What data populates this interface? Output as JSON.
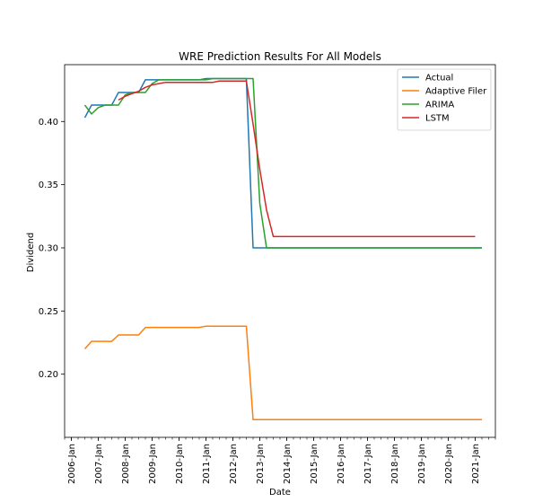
{
  "chart_data": {
    "type": "line",
    "title": "WRE Prediction Results For All Models",
    "xlabel": "Date",
    "ylabel": "Dividend",
    "ylim": [
      0.15,
      0.445
    ],
    "xlim": [
      "2005-10",
      "2021-10"
    ],
    "x_ticks": [
      "2006-Jan",
      "2007-Jan",
      "2008-Jan",
      "2009-Jan",
      "2010-Jan",
      "2011-Jan",
      "2012-Jan",
      "2013-Jan",
      "2014-Jan",
      "2015-Jan",
      "2016-Jan",
      "2017-Jan",
      "2018-Jan",
      "2019-Jan",
      "2020-Jan",
      "2021-Jan"
    ],
    "y_ticks": [
      0.2,
      0.25,
      0.3,
      0.35,
      0.4
    ],
    "y_tick_labels": [
      "0.20",
      "0.25",
      "0.30",
      "0.35",
      "0.40"
    ],
    "grid": false,
    "legend_position": "top-right",
    "series": [
      {
        "name": "Actual",
        "color": "#1f77b4",
        "points": [
          [
            "2006-07",
            0.403
          ],
          [
            "2006-10",
            0.413
          ],
          [
            "2007-01",
            0.413
          ],
          [
            "2007-04",
            0.413
          ],
          [
            "2007-07",
            0.413
          ],
          [
            "2007-10",
            0.423
          ],
          [
            "2008-01",
            0.423
          ],
          [
            "2008-04",
            0.423
          ],
          [
            "2008-07",
            0.423
          ],
          [
            "2008-10",
            0.433
          ],
          [
            "2009-01",
            0.433
          ],
          [
            "2009-04",
            0.433
          ],
          [
            "2009-07",
            0.433
          ],
          [
            "2009-10",
            0.433
          ],
          [
            "2010-01",
            0.433
          ],
          [
            "2010-04",
            0.433
          ],
          [
            "2010-07",
            0.433
          ],
          [
            "2010-10",
            0.433
          ],
          [
            "2011-01",
            0.434
          ],
          [
            "2011-04",
            0.434
          ],
          [
            "2011-07",
            0.434
          ],
          [
            "2011-10",
            0.434
          ],
          [
            "2012-01",
            0.434
          ],
          [
            "2012-04",
            0.434
          ],
          [
            "2012-07",
            0.434
          ],
          [
            "2012-10",
            0.3
          ],
          [
            "2013-01",
            0.3
          ],
          [
            "2013-04",
            0.3
          ],
          [
            "2013-07",
            0.3
          ],
          [
            "2014-01",
            0.3
          ],
          [
            "2015-01",
            0.3
          ],
          [
            "2016-01",
            0.3
          ],
          [
            "2017-01",
            0.3
          ],
          [
            "2018-01",
            0.3
          ],
          [
            "2019-01",
            0.3
          ],
          [
            "2020-01",
            0.3
          ],
          [
            "2021-01",
            0.3
          ],
          [
            "2021-04",
            0.3
          ]
        ]
      },
      {
        "name": "Adaptive Filer",
        "color": "#ff7f0e",
        "points": [
          [
            "2006-07",
            0.22
          ],
          [
            "2006-10",
            0.226
          ],
          [
            "2007-01",
            0.226
          ],
          [
            "2007-04",
            0.226
          ],
          [
            "2007-07",
            0.226
          ],
          [
            "2007-10",
            0.231
          ],
          [
            "2008-01",
            0.231
          ],
          [
            "2008-04",
            0.231
          ],
          [
            "2008-07",
            0.231
          ],
          [
            "2008-10",
            0.237
          ],
          [
            "2009-01",
            0.237
          ],
          [
            "2009-04",
            0.237
          ],
          [
            "2009-07",
            0.237
          ],
          [
            "2009-10",
            0.237
          ],
          [
            "2010-01",
            0.237
          ],
          [
            "2010-04",
            0.237
          ],
          [
            "2010-07",
            0.237
          ],
          [
            "2010-10",
            0.237
          ],
          [
            "2011-01",
            0.238
          ],
          [
            "2011-04",
            0.238
          ],
          [
            "2011-07",
            0.238
          ],
          [
            "2011-10",
            0.238
          ],
          [
            "2012-01",
            0.238
          ],
          [
            "2012-04",
            0.238
          ],
          [
            "2012-07",
            0.238
          ],
          [
            "2012-10",
            0.164
          ],
          [
            "2013-01",
            0.164
          ],
          [
            "2014-01",
            0.164
          ],
          [
            "2015-01",
            0.164
          ],
          [
            "2016-01",
            0.164
          ],
          [
            "2017-01",
            0.164
          ],
          [
            "2018-01",
            0.164
          ],
          [
            "2019-01",
            0.164
          ],
          [
            "2020-01",
            0.164
          ],
          [
            "2021-01",
            0.164
          ],
          [
            "2021-04",
            0.164
          ]
        ]
      },
      {
        "name": "ARIMA",
        "color": "#2ca02c",
        "points": [
          [
            "2006-07",
            0.413
          ],
          [
            "2006-10",
            0.406
          ],
          [
            "2007-01",
            0.411
          ],
          [
            "2007-04",
            0.413
          ],
          [
            "2007-07",
            0.413
          ],
          [
            "2007-10",
            0.413
          ],
          [
            "2008-01",
            0.421
          ],
          [
            "2008-04",
            0.423
          ],
          [
            "2008-07",
            0.423
          ],
          [
            "2008-10",
            0.423
          ],
          [
            "2009-01",
            0.43
          ],
          [
            "2009-04",
            0.433
          ],
          [
            "2009-07",
            0.433
          ],
          [
            "2009-10",
            0.433
          ],
          [
            "2010-01",
            0.433
          ],
          [
            "2010-04",
            0.433
          ],
          [
            "2010-07",
            0.433
          ],
          [
            "2010-10",
            0.433
          ],
          [
            "2011-01",
            0.433
          ],
          [
            "2011-04",
            0.434
          ],
          [
            "2011-07",
            0.434
          ],
          [
            "2011-10",
            0.434
          ],
          [
            "2012-01",
            0.434
          ],
          [
            "2012-04",
            0.434
          ],
          [
            "2012-07",
            0.434
          ],
          [
            "2012-10",
            0.434
          ],
          [
            "2013-01",
            0.335
          ],
          [
            "2013-04",
            0.3
          ],
          [
            "2013-07",
            0.3
          ],
          [
            "2014-01",
            0.3
          ],
          [
            "2015-01",
            0.3
          ],
          [
            "2016-01",
            0.3
          ],
          [
            "2017-01",
            0.3
          ],
          [
            "2018-01",
            0.3
          ],
          [
            "2019-01",
            0.3
          ],
          [
            "2020-01",
            0.3
          ],
          [
            "2021-01",
            0.3
          ],
          [
            "2021-04",
            0.3
          ]
        ]
      },
      {
        "name": "LSTM",
        "color": "#d62728",
        "points": [
          [
            "2007-10",
            0.417
          ],
          [
            "2008-01",
            0.42
          ],
          [
            "2008-04",
            0.422
          ],
          [
            "2008-07",
            0.424
          ],
          [
            "2008-10",
            0.427
          ],
          [
            "2009-01",
            0.429
          ],
          [
            "2009-04",
            0.43
          ],
          [
            "2009-07",
            0.431
          ],
          [
            "2009-10",
            0.431
          ],
          [
            "2010-01",
            0.431
          ],
          [
            "2010-04",
            0.431
          ],
          [
            "2010-07",
            0.431
          ],
          [
            "2010-10",
            0.431
          ],
          [
            "2011-01",
            0.431
          ],
          [
            "2011-04",
            0.431
          ],
          [
            "2011-07",
            0.432
          ],
          [
            "2011-10",
            0.432
          ],
          [
            "2012-01",
            0.432
          ],
          [
            "2012-04",
            0.432
          ],
          [
            "2012-07",
            0.432
          ],
          [
            "2012-10",
            0.398
          ],
          [
            "2013-01",
            0.362
          ],
          [
            "2013-04",
            0.33
          ],
          [
            "2013-07",
            0.309
          ],
          [
            "2013-10",
            0.309
          ],
          [
            "2014-01",
            0.309
          ],
          [
            "2015-01",
            0.309
          ],
          [
            "2016-01",
            0.309
          ],
          [
            "2017-01",
            0.309
          ],
          [
            "2018-01",
            0.309
          ],
          [
            "2019-01",
            0.309
          ],
          [
            "2020-01",
            0.309
          ],
          [
            "2021-01",
            0.309
          ]
        ]
      }
    ]
  }
}
